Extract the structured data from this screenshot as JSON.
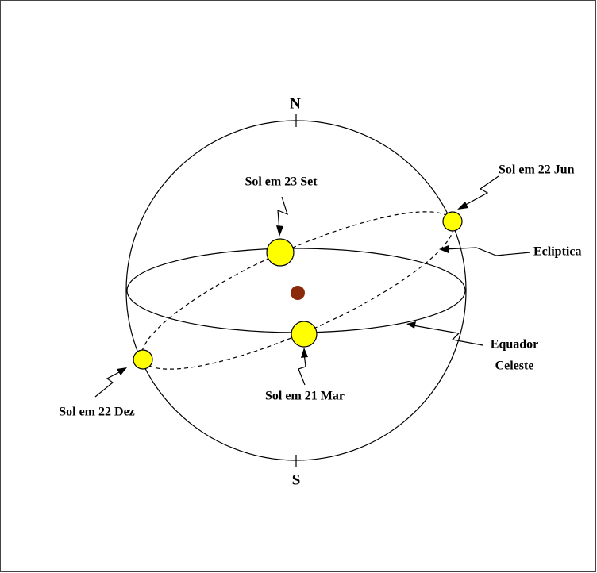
{
  "labels": {
    "north": "N",
    "south": "S",
    "sep": "Sol em 23 Set",
    "jun": "Sol em 22 Jun",
    "ecliptic": "Ecliptica",
    "equator_1": "Equador",
    "equator_2": "Celeste",
    "mar": "Sol em 21 Mar",
    "dec": "Sol em 22 Dez"
  }
}
